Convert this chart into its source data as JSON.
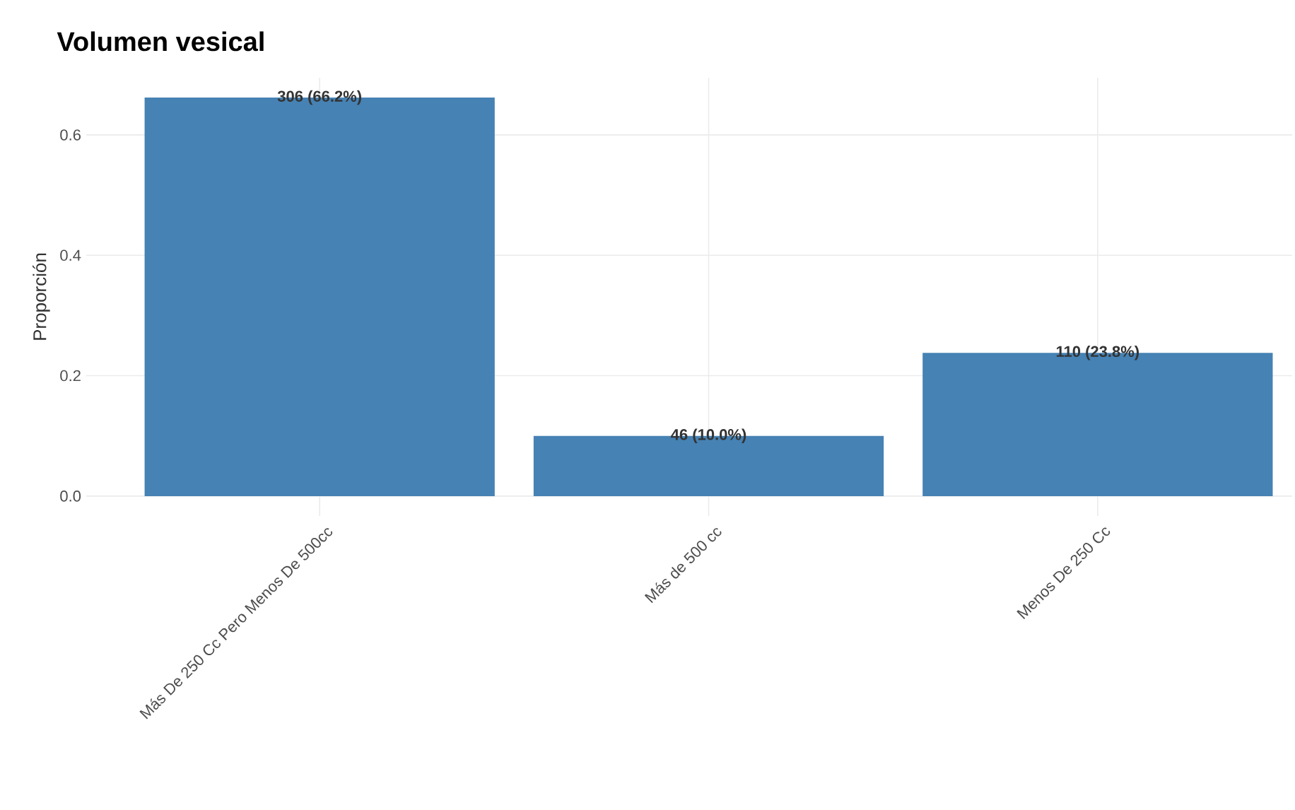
{
  "chart_data": {
    "type": "bar",
    "title": "Volumen vesical",
    "ylabel": "Proporción",
    "categories": [
      "Más De 250 Cc Pero Menos De 500cc",
      "Más de 500 cc",
      "Menos De 250 Cc"
    ],
    "values": [
      0.662,
      0.1,
      0.238
    ],
    "value_labels": [
      "306 (66.2%)",
      "46 (10.0%)",
      "110 (23.8%)"
    ],
    "color": "#4682b4",
    "ylim": [
      -0.033,
      0.695
    ],
    "yticks": [
      {
        "value": 0,
        "label": "0.0"
      },
      0.2,
      0.4,
      0.6
    ],
    "grid": true
  }
}
